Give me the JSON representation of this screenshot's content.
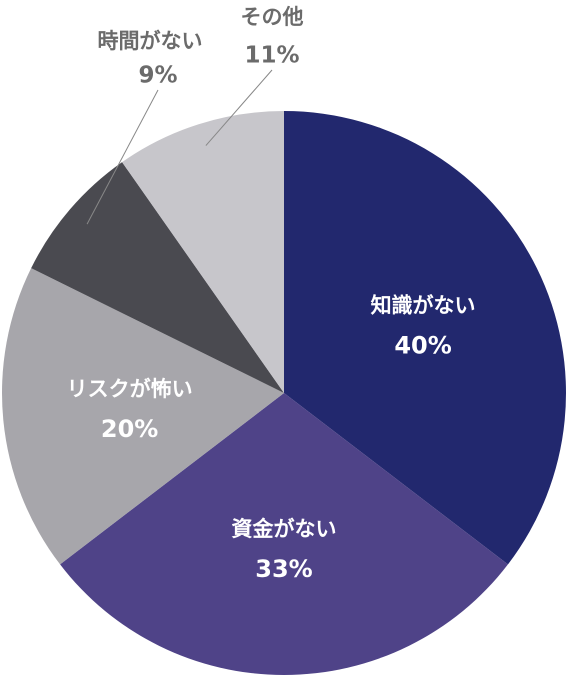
{
  "chart_data": {
    "type": "pie",
    "categories": [
      "知識がない",
      "資金がない",
      "リスクが怖い",
      "時間がない",
      "その他"
    ],
    "values": [
      40,
      33,
      20,
      9,
      11
    ],
    "value_labels": [
      "40%",
      "33%",
      "20%",
      "9%",
      "11%"
    ],
    "colors": [
      "#22286e",
      "#4f4388",
      "#a7a6ab",
      "#4a4a50",
      "#c7c6cb"
    ]
  }
}
